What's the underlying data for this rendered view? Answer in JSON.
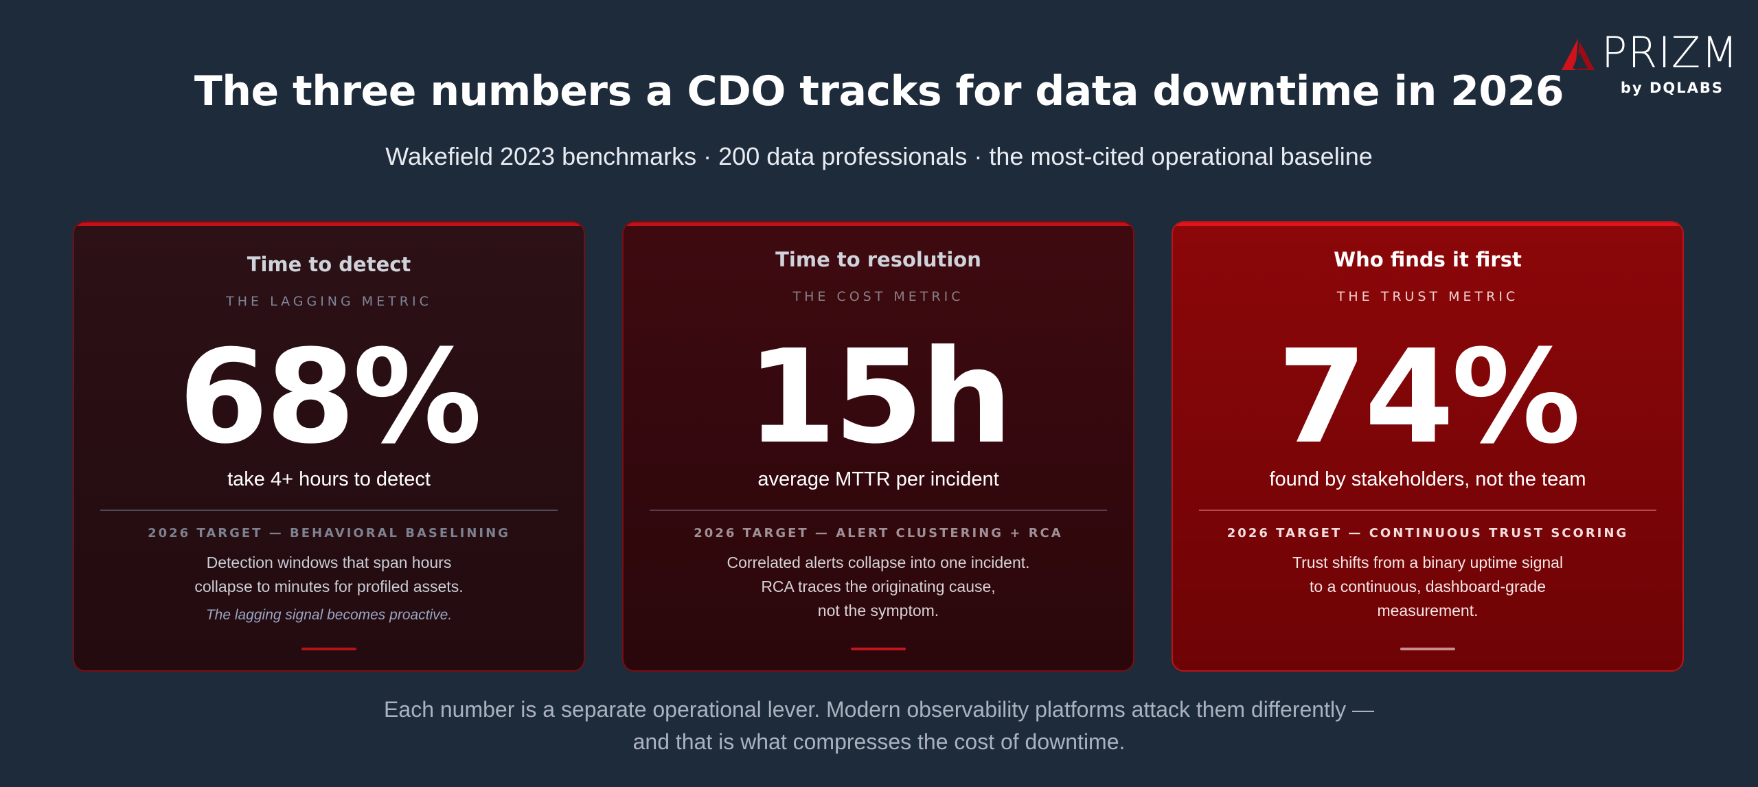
{
  "brand": {
    "logo_name": "PRIZM",
    "logo_byline": "by DQLABS",
    "logo_icon": "triangle-logo-icon",
    "accent_color": "#d0121a"
  },
  "headline": {
    "title": "The three numbers a CDO tracks for data downtime in 2026",
    "subtitle": "Wakefield 2023 benchmarks · 200 data professionals · the most-cited operational baseline"
  },
  "cards": [
    {
      "title": "Time to detect",
      "eyebrow": "THE LAGGING METRIC",
      "number": "68%",
      "caption": "take 4+ hours to detect",
      "target_label": "2026 TARGET — BEHAVIORAL BASELINING",
      "target_lines": [
        "Detection windows that span hours",
        "collapse to minutes for profiled assets."
      ],
      "note": "The lagging signal becomes proactive."
    },
    {
      "title": "Time to resolution",
      "eyebrow": "THE COST METRIC",
      "number": "15h",
      "caption": "average MTTR per incident",
      "target_label": "2026 TARGET — ALERT CLUSTERING + RCA",
      "target_lines": [
        "Correlated alerts collapse into one incident.",
        "RCA traces the originating cause,",
        "not the symptom."
      ]
    },
    {
      "title": "Who finds it first",
      "eyebrow": "THE TRUST METRIC",
      "number": "74%",
      "caption": "found by stakeholders, not the team",
      "target_label": "2026 TARGET — CONTINUOUS TRUST SCORING",
      "target_lines": [
        "Trust shifts from a binary uptime signal",
        "to a continuous, dashboard-grade",
        "measurement."
      ]
    }
  ],
  "footer": {
    "line1": "Each number is a separate operational lever. Modern observability platforms attack them differently —",
    "line2": "and that is what compresses the cost of downtime."
  }
}
